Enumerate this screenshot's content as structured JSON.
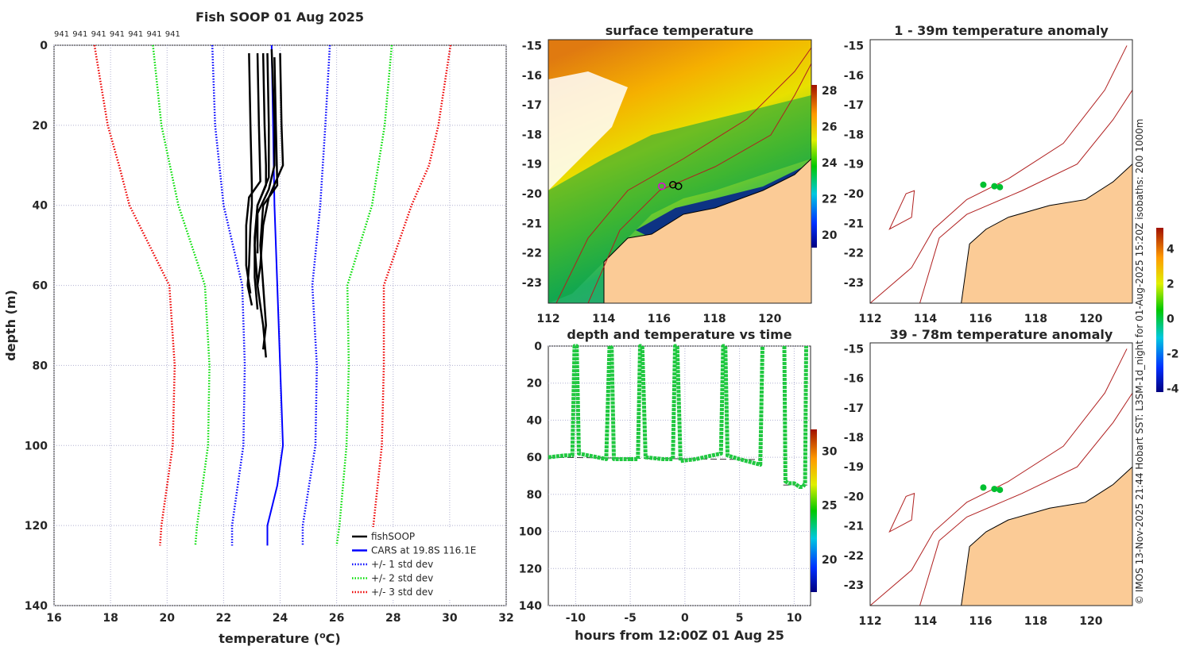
{
  "colors": {
    "fish": "#000000",
    "cars": "#0000ff",
    "std1": "#0000ff",
    "std2": "#00dd00",
    "std3": "#ee0000",
    "land": "#fbcb96",
    "isobath": "#b02020",
    "grid": "#b0b0d0"
  },
  "chart_data": [
    {
      "id": "profile",
      "type": "line",
      "title": "Fish SOOP 01 Aug 2025",
      "top_labels": [
        "941",
        "941",
        "941",
        "941",
        "941",
        "941",
        "941"
      ],
      "xlabel": "temperature (",
      "xlabel_sup": "o",
      "xlabel_end": "C)",
      "ylabel": "depth (m)",
      "xlim": [
        16,
        32
      ],
      "ylim": [
        0,
        140
      ],
      "y_inverted": true,
      "xticks": [
        16,
        18,
        20,
        22,
        24,
        26,
        28,
        30,
        32
      ],
      "yticks": [
        0,
        20,
        40,
        60,
        80,
        100,
        120,
        140
      ],
      "grid": true,
      "legend_position": "bottom-right",
      "legend": [
        "fishSOOP",
        "CARS at 19.8S 116.1E",
        "+/- 1 std dev",
        "+/- 2 std dev",
        "+/- 3 std dev"
      ],
      "cars": {
        "depth": [
          0,
          20,
          40,
          60,
          80,
          100,
          110,
          120,
          125
        ],
        "temp": [
          23.7,
          23.75,
          23.8,
          23.9,
          24.0,
          24.1,
          23.9,
          23.55,
          23.55
        ]
      },
      "std": [
        {
          "name": "+/- 1 std dev",
          "depth": [
            0,
            20,
            40,
            60,
            80,
            100,
            120,
            125
          ],
          "lower": [
            21.6,
            21.7,
            22.0,
            22.66,
            22.75,
            22.7,
            22.3,
            22.3
          ],
          "upper": [
            25.76,
            25.6,
            25.42,
            25.14,
            25.3,
            25.25,
            24.8,
            24.8
          ]
        },
        {
          "name": "+/- 2 std dev",
          "depth": [
            0,
            20,
            40,
            60,
            80,
            100,
            120,
            125
          ],
          "lower": [
            19.5,
            19.8,
            20.4,
            21.34,
            21.5,
            21.45,
            21.06,
            21.0
          ],
          "upper": [
            27.95,
            27.7,
            27.25,
            26.38,
            26.43,
            26.35,
            26.1,
            26.0
          ]
        },
        {
          "name": "+/- 3 std dev",
          "depth": [
            0,
            20,
            30,
            40,
            60,
            80,
            100,
            120,
            125
          ],
          "lower": [
            17.43,
            17.9,
            18.3,
            18.67,
            20.08,
            20.27,
            20.2,
            19.8,
            19.75
          ],
          "upper": [
            30.03,
            29.6,
            29.27,
            28.65,
            27.67,
            27.67,
            27.6,
            27.3,
            27.2
          ]
        }
      ],
      "fish_profiles": [
        {
          "depth": [
            2,
            20,
            35,
            40,
            45,
            55,
            60,
            65
          ],
          "temp": [
            22.9,
            22.95,
            23.0,
            23.0,
            22.95,
            22.9,
            22.85,
            23.0
          ]
        },
        {
          "depth": [
            2,
            20,
            34,
            38,
            45,
            55,
            62
          ],
          "temp": [
            23.2,
            23.25,
            23.3,
            22.9,
            22.8,
            22.8,
            22.95
          ]
        },
        {
          "depth": [
            2,
            20,
            30,
            35,
            40,
            50,
            60,
            70,
            78
          ],
          "temp": [
            23.4,
            23.45,
            23.5,
            23.5,
            23.2,
            23.1,
            23.2,
            23.4,
            23.5
          ]
        },
        {
          "depth": [
            1,
            20,
            30,
            36,
            42,
            52
          ],
          "temp": [
            23.7,
            23.8,
            23.8,
            23.6,
            23.2,
            23.2
          ]
        },
        {
          "depth": [
            2,
            20,
            30,
            38,
            45,
            55,
            60
          ],
          "temp": [
            24.0,
            24.05,
            24.1,
            23.6,
            23.4,
            23.3,
            23.2
          ]
        },
        {
          "depth": [
            2,
            20,
            33,
            40,
            48,
            58,
            66
          ],
          "temp": [
            23.55,
            23.6,
            23.6,
            23.2,
            23.1,
            23.1,
            23.2
          ]
        },
        {
          "depth": [
            3,
            20,
            35,
            40,
            50,
            60,
            70,
            76
          ],
          "temp": [
            23.8,
            23.85,
            23.9,
            23.4,
            23.3,
            23.4,
            23.5,
            23.4
          ]
        }
      ]
    },
    {
      "id": "sst-map",
      "type": "heatmap",
      "title": "surface temperature",
      "xlim": [
        112,
        121.5
      ],
      "ylim": [
        -23.7,
        -14.8
      ],
      "xticks": [
        112,
        114,
        116,
        118,
        120
      ],
      "yticks": [
        -15,
        -16,
        -17,
        -18,
        -19,
        -20,
        -21,
        -22,
        -23
      ],
      "colorbar": {
        "range": [
          19.3,
          28.3
        ],
        "ticks": [
          20,
          22,
          24,
          26,
          28
        ]
      },
      "track_points": [
        [
          116.1,
          -19.75
        ],
        [
          116.5,
          -19.7
        ],
        [
          116.7,
          -19.75
        ]
      ]
    },
    {
      "id": "depth-time",
      "type": "scatter",
      "title": "depth and temperature vs time",
      "xlabel": "hours from 12:00Z 01 Aug 25",
      "xlim": [
        -12.5,
        11.5
      ],
      "ylim": [
        0,
        140
      ],
      "y_inverted": true,
      "xticks": [
        -10,
        -5,
        0,
        5,
        10
      ],
      "yticks": [
        0,
        20,
        40,
        60,
        80,
        100,
        120,
        140
      ],
      "colorbar": {
        "range": [
          17,
          32
        ],
        "ticks": [
          20,
          25,
          30
        ]
      },
      "dives": [
        {
          "t": [
            -12.5,
            -11,
            -10.3,
            -10.1,
            -9.9,
            -9.7,
            -8,
            -7.2,
            -6.9,
            -6.7,
            -6.5,
            -5
          ],
          "d": [
            60,
            59,
            59,
            0,
            0,
            58,
            60,
            61,
            0,
            1,
            61,
            61
          ]
        },
        {
          "t": [
            -5,
            -4.3,
            -4.1,
            -3.9,
            -3.6,
            -2,
            -1.1,
            -0.9,
            -0.7,
            -0.4,
            1,
            2.5,
            3.3,
            3.5,
            3.7,
            3.9,
            5,
            6.9,
            7.1
          ],
          "d": [
            61,
            61,
            0,
            0,
            60,
            61,
            61,
            0,
            0,
            62,
            61,
            59,
            58,
            0,
            0,
            59,
            61,
            64,
            0
          ]
        },
        {
          "t": [
            9.1,
            9.2,
            9.5,
            10,
            10.5,
            10.8,
            11.0,
            11.1
          ],
          "d": [
            0,
            73,
            74,
            74,
            76,
            76,
            74,
            0
          ]
        }
      ],
      "cars_line_depth": 60
    },
    {
      "id": "anom-1-39",
      "type": "heatmap",
      "title": "1 - 39m temperature anomaly",
      "xlim": [
        112,
        121.5
      ],
      "ylim": [
        -23.7,
        -14.8
      ],
      "xticks": [
        112,
        114,
        116,
        118,
        120
      ],
      "yticks": [
        -15,
        -16,
        -17,
        -18,
        -19,
        -20,
        -21,
        -22,
        -23
      ],
      "points": [
        [
          116.1,
          -19.7
        ],
        [
          116.5,
          -19.75
        ],
        [
          116.7,
          -19.78
        ]
      ]
    },
    {
      "id": "anom-39-78",
      "type": "heatmap",
      "title": "39 - 78m temperature anomaly",
      "xlim": [
        112,
        121.5
      ],
      "ylim": [
        -23.7,
        -14.8
      ],
      "xticks": [
        112,
        114,
        116,
        118,
        120
      ],
      "yticks": [
        -15,
        -16,
        -17,
        -18,
        -19,
        -20,
        -21,
        -22,
        -23
      ],
      "points": [
        [
          116.1,
          -19.7
        ],
        [
          116.5,
          -19.75
        ],
        [
          116.7,
          -19.78
        ]
      ],
      "colorbar": {
        "range": [
          -4.2,
          5.2
        ],
        "ticks": [
          -4,
          -2,
          0,
          2,
          4
        ]
      }
    }
  ],
  "footer_note": "© IMOS 13-Nov-2025 21:44 Hobart SST: L3SM-1d_night for 01-Aug-2025 15:20Z isobaths: 200  1000m"
}
